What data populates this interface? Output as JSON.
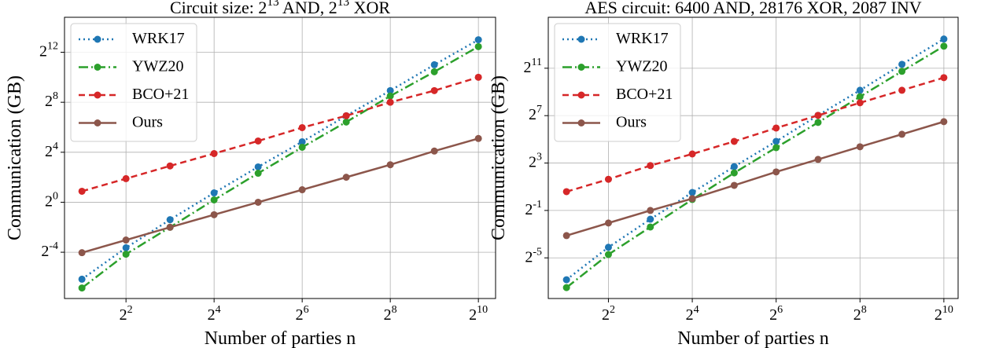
{
  "chart_data": [
    {
      "type": "line",
      "title": "Circuit size: 2^13 AND, 2^13 XOR",
      "x_label": "Number of parties n",
      "y_label": "Communication (GB)",
      "log_scale": true,
      "grid": true,
      "legend": "upper left",
      "x": [
        2,
        4,
        8,
        16,
        32,
        64,
        128,
        256,
        512,
        1024
      ],
      "xlim": [
        1.52,
        1342
      ],
      "ylim": [
        0.0048,
        28500
      ],
      "xticks": [
        {
          "value": 4,
          "label": "2^2"
        },
        {
          "value": 16,
          "label": "2^4"
        },
        {
          "value": 64,
          "label": "2^6"
        },
        {
          "value": 256,
          "label": "2^8"
        },
        {
          "value": 1024,
          "label": "2^10"
        }
      ],
      "yticks": [
        {
          "value": 0.0625,
          "label": "2^-4"
        },
        {
          "value": 1,
          "label": "2^0"
        },
        {
          "value": 16,
          "label": "2^4"
        },
        {
          "value": 256,
          "label": "2^8"
        },
        {
          "value": 4096,
          "label": "2^12"
        }
      ],
      "series": [
        {
          "name": "WRK17",
          "color": "#1f77b4",
          "dash": "dotted",
          "values": [
            0.014,
            0.08,
            0.38,
            1.68,
            7.1,
            28.6,
            121,
            488,
            2048,
            8192
          ]
        },
        {
          "name": "YWZ20",
          "color": "#2ca02c",
          "dash": "dashdot",
          "values": [
            0.0086,
            0.056,
            0.25,
            1.14,
            5.0,
            21.1,
            85.6,
            362,
            1390,
            5600
          ]
        },
        {
          "name": "BCO+21",
          "color": "#d62728",
          "dash": "dashed",
          "values": [
            1.84,
            3.7,
            7.5,
            14.9,
            29.9,
            62.7,
            121,
            256,
            488,
            1024
          ]
        },
        {
          "name": "Ours",
          "color": "#8c564b",
          "dash": "solid",
          "values": [
            0.061,
            0.123,
            0.25,
            0.5,
            1.0,
            2.0,
            4.0,
            8.0,
            17.1,
            34.3
          ]
        }
      ]
    },
    {
      "type": "line",
      "title": "AES circuit: 6400 AND, 28176 XOR, 2087 INV",
      "x_label": "Number of parties n",
      "y_label": "Communication (GB)",
      "log_scale": true,
      "grid": true,
      "legend": "upper left",
      "x": [
        2,
        4,
        8,
        16,
        32,
        64,
        128,
        256,
        512,
        1024
      ],
      "xlim": [
        1.48,
        1296
      ],
      "ylim": [
        0.0029,
        40300
      ],
      "xticks": [
        {
          "value": 4,
          "label": "2^2"
        },
        {
          "value": 16,
          "label": "2^4"
        },
        {
          "value": 64,
          "label": "2^6"
        },
        {
          "value": 256,
          "label": "2^8"
        },
        {
          "value": 1024,
          "label": "2^10"
        }
      ],
      "yticks": [
        {
          "value": 0.03125,
          "label": "2^-5"
        },
        {
          "value": 0.5,
          "label": "2^-1"
        },
        {
          "value": 8,
          "label": "2^3"
        },
        {
          "value": 128,
          "label": "2^7"
        },
        {
          "value": 2048,
          "label": "2^11"
        }
      ],
      "series": [
        {
          "name": "WRK17",
          "color": "#1f77b4",
          "dash": "dotted",
          "values": [
            0.0087,
            0.058,
            0.3,
            1.43,
            6.5,
            28.4,
            130,
            564,
            2570,
            11300
          ]
        },
        {
          "name": "YWZ20",
          "color": "#2ca02c",
          "dash": "dashdot",
          "values": [
            0.0055,
            0.038,
            0.19,
            0.95,
            4.5,
            19.7,
            86,
            388,
            1710,
            7430
          ]
        },
        {
          "name": "BCO+21",
          "color": "#d62728",
          "dash": "dashed",
          "values": [
            1.5,
            3.1,
            6.9,
            13.6,
            28.4,
            62,
            130,
            271,
            564,
            1180
          ]
        },
        {
          "name": "Ours",
          "color": "#8c564b",
          "dash": "solid",
          "values": [
            0.115,
            0.24,
            0.5,
            1.0,
            2.17,
            4.76,
            9.9,
            20.7,
            43.1,
            90
          ]
        }
      ]
    }
  ]
}
